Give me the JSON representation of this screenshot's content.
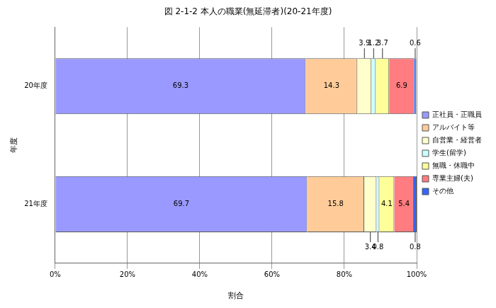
{
  "chart_data": {
    "type": "bar",
    "title": "図 2-1-2 本人の職業(無延滞者)(20-21年度)",
    "orientation": "horizontal",
    "stacked": true,
    "data_labels": true,
    "grid": true,
    "legend": "right",
    "x_label": "割合",
    "y_label": "年度",
    "categories": [
      "20年度",
      "21年度"
    ],
    "xlim": [
      0,
      100
    ],
    "xticks": [
      {
        "value": 0,
        "label": "0%"
      },
      {
        "value": 20,
        "label": "20%"
      },
      {
        "value": 40,
        "label": "40%"
      },
      {
        "value": 60,
        "label": "60%"
      },
      {
        "value": 80,
        "label": "80%"
      },
      {
        "value": 100,
        "label": "100%"
      }
    ],
    "series": [
      {
        "name": "正社員・正職員",
        "color": "#9999ff",
        "values": [
          69.3,
          69.7
        ]
      },
      {
        "name": "アルバイト等",
        "color": "#ffcc99",
        "values": [
          14.3,
          15.8
        ]
      },
      {
        "name": "自営業・経営者",
        "color": "#ffffcc",
        "values": [
          3.9,
          3.4
        ]
      },
      {
        "name": "学生(留学)",
        "color": "#ccffff",
        "values": [
          1.2,
          0.8
        ]
      },
      {
        "name": "無職・休職中",
        "color": "#ffff99",
        "values": [
          3.7,
          4.1
        ]
      },
      {
        "name": "専業主婦(夫)",
        "color": "#ff7c80",
        "values": [
          6.9,
          5.4
        ]
      },
      {
        "name": "その他",
        "color": "#3366ff",
        "values": [
          0.6,
          0.8
        ]
      }
    ]
  }
}
